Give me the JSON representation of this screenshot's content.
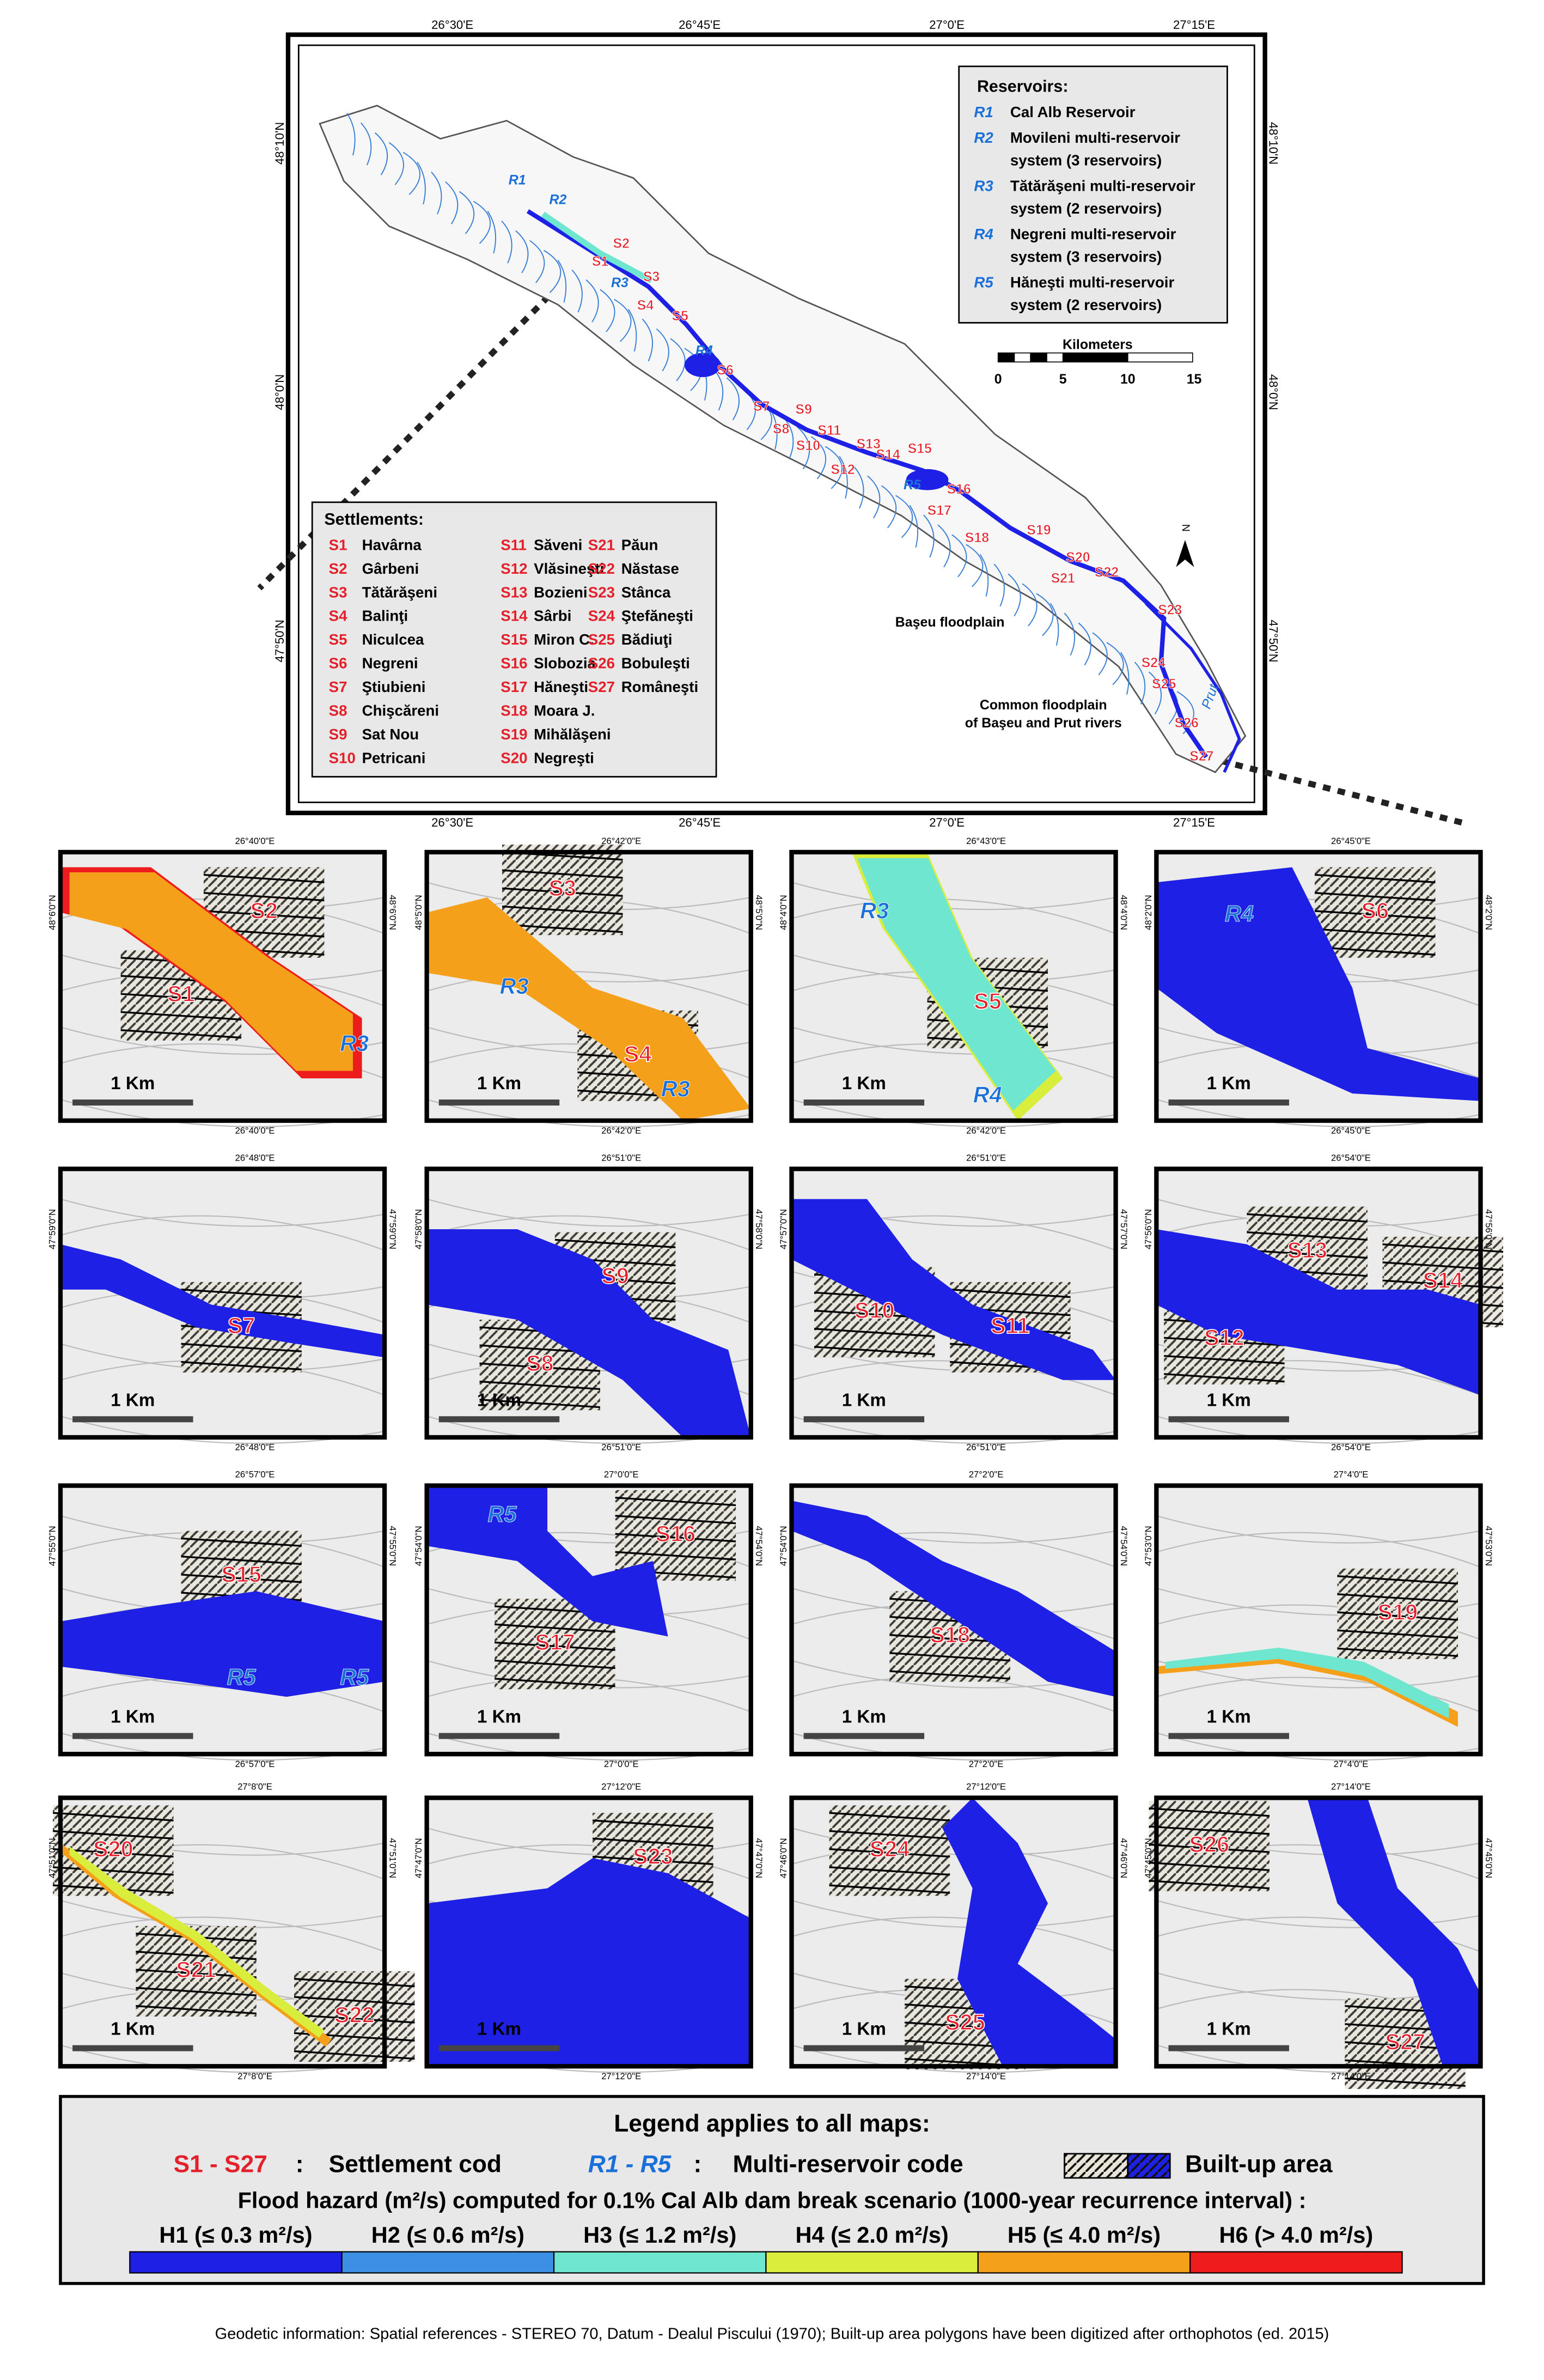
{
  "main_map": {
    "top_coords": [
      "26°30'E",
      "26°45'E",
      "27°0'E",
      "27°15'E"
    ],
    "bottom_coords": [
      "26°30'E",
      "26°45'E",
      "27°0'E",
      "27°15'E"
    ],
    "left_coords": [
      "48°10'N",
      "48°0'N",
      "47°50'N"
    ],
    "right_coords": [
      "48°10'N",
      "48°0'N",
      "47°50'N"
    ],
    "reservoirs_title": "Reservoirs:",
    "reservoirs": [
      {
        "code": "R1",
        "lines": [
          "Cal Alb Reservoir"
        ]
      },
      {
        "code": "R2",
        "lines": [
          "Movileni multi-reservoir",
          "system (3 reservoirs)"
        ]
      },
      {
        "code": "R3",
        "lines": [
          "Tătărăşeni multi-reservoir",
          "system (2 reservoirs)"
        ]
      },
      {
        "code": "R4",
        "lines": [
          "Negreni multi-reservoir",
          "system (3 reservoirs)"
        ]
      },
      {
        "code": "R5",
        "lines": [
          "Hăneşti multi-reservoir",
          "system (2 reservoirs)"
        ]
      }
    ],
    "settlements_title": "Settlements:",
    "settlements": [
      {
        "code": "S1",
        "name": "Havârna"
      },
      {
        "code": "S2",
        "name": "Gârbeni"
      },
      {
        "code": "S3",
        "name": "Tătărăşeni"
      },
      {
        "code": "S4",
        "name": "Balinţi"
      },
      {
        "code": "S5",
        "name": "Niculcea"
      },
      {
        "code": "S6",
        "name": "Negreni"
      },
      {
        "code": "S7",
        "name": "Ştiubieni"
      },
      {
        "code": "S8",
        "name": "Chişcăreni"
      },
      {
        "code": "S9",
        "name": "Sat Nou"
      },
      {
        "code": "S10",
        "name": "Petricani"
      },
      {
        "code": "S11",
        "name": "Săveni"
      },
      {
        "code": "S12",
        "name": "Vlăsineşti"
      },
      {
        "code": "S13",
        "name": "Bozieni"
      },
      {
        "code": "S14",
        "name": "Sârbi"
      },
      {
        "code": "S15",
        "name": "Miron C."
      },
      {
        "code": "S16",
        "name": "Slobozia"
      },
      {
        "code": "S17",
        "name": "Hăneşti"
      },
      {
        "code": "S18",
        "name": "Moara J."
      },
      {
        "code": "S19",
        "name": "Mihălăşeni"
      },
      {
        "code": "S20",
        "name": "Negreşti"
      },
      {
        "code": "S21",
        "name": "Păun"
      },
      {
        "code": "S22",
        "name": "Năstase"
      },
      {
        "code": "S23",
        "name": "Stânca"
      },
      {
        "code": "S24",
        "name": "Ştefăneşti"
      },
      {
        "code": "S25",
        "name": "Bădiuţi"
      },
      {
        "code": "S26",
        "name": "Bobuleşti"
      },
      {
        "code": "S27",
        "name": "Româneşti"
      }
    ],
    "reservoir_labels": [
      "R1",
      "R2",
      "R3",
      "R4",
      "R5"
    ],
    "floodplain_label": "Başeu floodplain",
    "common_floodplain_label": [
      "Common floodplain",
      "of Başeu and Prut rivers"
    ],
    "river_label": "Prut",
    "scale_title": "Kilometers",
    "scale_labels": [
      "0",
      "5",
      "10",
      "15"
    ],
    "north": "N"
  },
  "insets": [
    {
      "top": "26°40'0\"E",
      "bottom": "26°40'0\"E",
      "side": "48°6'0\"N",
      "labels": [
        "S2",
        "S1",
        "R3"
      ]
    },
    {
      "top": "26°42'0\"E",
      "bottom": "26°42'0\"E",
      "side": "48°5'0\"N",
      "labels": [
        "S3",
        "R3",
        "S4",
        "R3"
      ]
    },
    {
      "top": "26°43'0\"E",
      "bottom": "26°42'0\"E",
      "side": "48°4'0\"N",
      "labels": [
        "R3",
        "S5",
        "R4"
      ]
    },
    {
      "top": "26°45'0\"E",
      "bottom": "26°45'0\"E",
      "side": "48°2'0\"N",
      "labels": [
        "R4",
        "S6"
      ]
    },
    {
      "top": "26°48'0\"E",
      "bottom": "26°48'0\"E",
      "side": "47°59'0\"N",
      "labels": [
        "S7"
      ]
    },
    {
      "top": "26°51'0\"E",
      "bottom": "26°51'0\"E",
      "side": "47°58'0\"N",
      "labels": [
        "S9",
        "S8"
      ]
    },
    {
      "top": "26°51'0\"E",
      "bottom": "26°51'0\"E",
      "side": "47°57'0\"N",
      "labels": [
        "S10",
        "S11"
      ]
    },
    {
      "top": "26°54'0\"E",
      "bottom": "26°54'0\"E",
      "side": "47°56'0\"N",
      "labels": [
        "S13",
        "S14",
        "S12"
      ]
    },
    {
      "top": "26°57'0\"E",
      "bottom": "26°57'0\"E",
      "side": "47°55'0\"N",
      "labels": [
        "S15",
        "R5",
        "R5"
      ]
    },
    {
      "top": "27°0'0\"E",
      "bottom": "27°0'0\"E",
      "side": "47°54'0\"N",
      "labels": [
        "R5",
        "S16",
        "S17"
      ]
    },
    {
      "top": "27°2'0\"E",
      "bottom": "27°2'0\"E",
      "side": "47°54'0\"N",
      "labels": [
        "S18"
      ]
    },
    {
      "top": "27°4'0\"E",
      "bottom": "27°4'0\"E",
      "side": "47°53'0\"N",
      "labels": [
        "S19"
      ]
    },
    {
      "top": "27°8'0\"E",
      "bottom": "27°8'0\"E",
      "side": "47°51'0\"N",
      "labels": [
        "S20",
        "S21",
        "S22"
      ]
    },
    {
      "top": "27°12'0\"E",
      "bottom": "27°12'0\"E",
      "side": "47°47'0\"N",
      "labels": [
        "S23"
      ]
    },
    {
      "top": "27°12'0\"E",
      "bottom": "27°14'0\"E",
      "side": "47°46'0\"N",
      "labels": [
        "S24",
        "S25"
      ]
    },
    {
      "top": "27°14'0\"E",
      "bottom": "27°14'0\"E",
      "side": "47°45'0\"N",
      "labels": [
        "S26",
        "S27"
      ]
    }
  ],
  "inset_scale": "1 Km",
  "legend": {
    "title": "Legend applies to all maps:",
    "settlement_code": "S1 - S27",
    "settlement_sep": ":",
    "settlement_text": "Settlement cod",
    "reservoir_code": "R1 - R5",
    "reservoir_sep": ":",
    "reservoir_text": "Multi-reservoir code",
    "builtup_text": "Built-up area",
    "hazard_title": "Flood hazard (m²/s) computed for 0.1% Cal Alb dam break scenario (1000-year recurrence interval) :",
    "classes": [
      {
        "label": "H1 (≤ 0.3 m²/s)",
        "color": "#1f20e6"
      },
      {
        "label": "H2 (≤ 0.6 m²/s)",
        "color": "#3d8fe6"
      },
      {
        "label": "H3 (≤ 1.2 m²/s)",
        "color": "#6fe6cf"
      },
      {
        "label": "H4 (≤ 2.0 m²/s)",
        "color": "#d9ee3c"
      },
      {
        "label": "H5 (≤ 4.0 m²/s)",
        "color": "#f5a01a"
      },
      {
        "label": "H6 (> 4.0 m²/s)",
        "color": "#ee1c1c"
      }
    ]
  },
  "footer": "Geodetic information: Spatial references - STEREO 70, Datum - Dealul Piscului (1970); Built-up area polygons have been digitized after orthophotos (ed. 2015)"
}
